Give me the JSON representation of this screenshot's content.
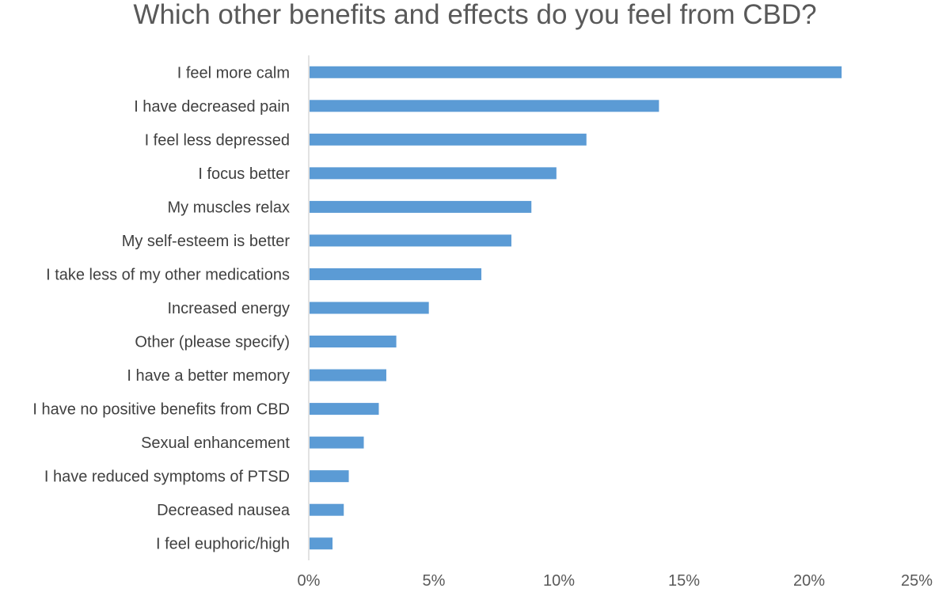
{
  "chart_data": {
    "type": "bar",
    "orientation": "horizontal",
    "title": "Which other benefits and effects do you feel from CBD?",
    "xlabel": "",
    "ylabel": "",
    "categories": [
      "I feel more calm",
      "I have decreased pain",
      "I feel less depressed",
      "I focus better",
      "My muscles relax",
      "My self-esteem is better",
      "I take less of my other medications",
      "Increased energy",
      "Other (please specify)",
      "I have a better memory",
      "I have no positive benefits from CBD",
      "Sexual enhancement",
      "I have reduced symptoms of PTSD",
      "Decreased nausea",
      "I feel euphoric/high"
    ],
    "values": [
      21.3,
      14.0,
      11.1,
      9.9,
      8.9,
      8.1,
      6.9,
      4.8,
      3.5,
      3.1,
      2.8,
      2.2,
      1.6,
      1.4,
      0.95
    ],
    "xlim": [
      0,
      25
    ],
    "ticks": [
      0,
      5,
      10,
      15,
      20,
      25
    ],
    "tick_labels": [
      "0%",
      "5%",
      "10%",
      "15%",
      "20%",
      "25%"
    ],
    "grid": false,
    "legend": "none",
    "colors": {
      "bar": "#5b9bd5",
      "axis": "#d9d9d9",
      "title": "#595959",
      "label": "#404040"
    }
  }
}
